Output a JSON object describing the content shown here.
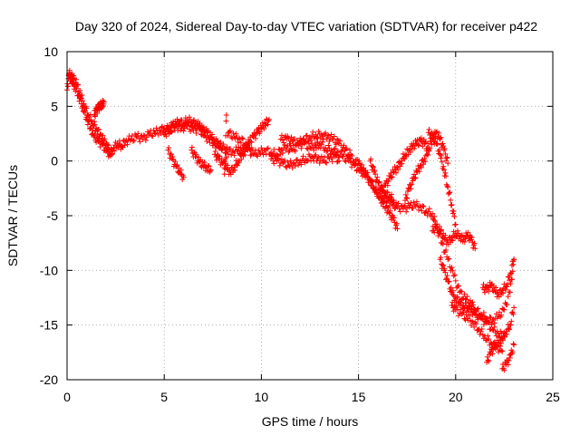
{
  "chart_data": {
    "type": "scatter",
    "title": "Day 320 of 2024, Sidereal Day-to-day VTEC variation (SDTVAR) for receiver p422",
    "xlabel": "GPS time / hours",
    "ylabel": "SDTVAR / TECUs",
    "xlim": [
      0,
      25
    ],
    "ylim": [
      -20,
      10
    ],
    "x_ticks": [
      "0",
      "5",
      "10",
      "15",
      "20",
      "25"
    ],
    "y_ticks": [
      "10",
      "5",
      "0",
      "-5",
      "-10",
      "-15",
      "-20"
    ],
    "grid": true,
    "marker": "plus",
    "series_color": "#ff0000",
    "series": [
      {
        "x": [
          0.0,
          0.1,
          0.2,
          0.3,
          0.4,
          0.6,
          0.8,
          1.0,
          1.2,
          1.4,
          1.6,
          1.8,
          2.0,
          2.2,
          2.4,
          2.6,
          2.8,
          3.0,
          3.3,
          3.6,
          3.9,
          4.2,
          4.5,
          4.8,
          5.0,
          5.3,
          5.6,
          5.9,
          6.2,
          6.5,
          6.8,
          7.0,
          7.3,
          7.6,
          7.9,
          8.2,
          8.5,
          8.8,
          9.0,
          9.3,
          9.6,
          9.9,
          10.2,
          10.5,
          10.8,
          11.0,
          11.3,
          11.6,
          11.9,
          12.2,
          12.5,
          12.8,
          13.0,
          13.3,
          13.6,
          13.9,
          14.2,
          14.5,
          14.8,
          15.0,
          15.3,
          15.6,
          15.9,
          16.2,
          16.5,
          16.8,
          17.0,
          17.3,
          17.6,
          17.9,
          18.2,
          18.5,
          18.8,
          19.0,
          19.3,
          19.6,
          19.9,
          20.2,
          20.5,
          20.8,
          21.0,
          21.3,
          21.6,
          21.9,
          22.2,
          22.5,
          22.8,
          23.0
        ],
        "y": [
          6.5,
          7.8,
          7.5,
          7.2,
          6.8,
          6.0,
          5.0,
          4.0,
          3.0,
          2.2,
          1.8,
          1.5,
          1.0,
          0.6,
          1.2,
          1.6,
          1.4,
          1.8,
          2.0,
          2.2,
          2.0,
          2.4,
          2.6,
          2.8,
          3.0,
          2.8,
          3.2,
          3.0,
          3.2,
          2.8,
          3.0,
          2.4,
          2.0,
          1.6,
          1.4,
          1.0,
          0.8,
          1.0,
          0.8,
          1.0,
          0.6,
          0.8,
          1.0,
          0.8,
          0.6,
          1.0,
          1.2,
          1.0,
          1.4,
          1.6,
          1.2,
          1.4,
          1.6,
          1.2,
          1.0,
          0.8,
          0.4,
          0.0,
          -0.4,
          -0.8,
          -1.2,
          -1.8,
          -2.6,
          -3.2,
          -3.6,
          -4.0,
          -4.2,
          -4.4,
          -4.2,
          -4.0,
          -4.2,
          -4.6,
          -4.8,
          -6.0,
          -7.5,
          -9.0,
          -10.5,
          -12.0,
          -12.6,
          -13.0,
          -13.6,
          -14.0,
          -14.4,
          -14.6,
          -14.2,
          -13.6,
          -12.0,
          -9.0
        ]
      },
      {
        "x": [
          0.1,
          0.3,
          0.5,
          0.7,
          0.9,
          1.1,
          1.3,
          1.5,
          1.7,
          1.9,
          2.1,
          2.3
        ],
        "y": [
          8.0,
          7.6,
          7.0,
          6.0,
          5.0,
          4.2,
          3.6,
          3.0,
          2.4,
          1.8,
          1.2,
          0.6
        ]
      },
      {
        "x": [
          1.4,
          1.5,
          1.6,
          1.7,
          1.8,
          1.9
        ],
        "y": [
          4.2,
          4.6,
          4.8,
          5.0,
          5.2,
          5.4
        ]
      },
      {
        "x": [
          5.0,
          5.2,
          5.4,
          5.6,
          5.8,
          6.0,
          6.2,
          6.4,
          6.6,
          6.8,
          7.0,
          7.2,
          7.4,
          7.6,
          7.8,
          8.0
        ],
        "y": [
          2.4,
          2.8,
          3.2,
          3.4,
          3.6,
          3.4,
          3.8,
          3.6,
          3.4,
          3.2,
          2.8,
          2.6,
          2.2,
          1.8,
          1.6,
          1.2
        ]
      },
      {
        "x": [
          5.2,
          5.4,
          5.6,
          5.8,
          6.0
        ],
        "y": [
          1.0,
          0.2,
          -0.5,
          -1.0,
          -1.5
        ]
      },
      {
        "x": [
          6.4,
          6.6,
          6.8,
          7.0,
          7.2,
          7.4
        ],
        "y": [
          1.0,
          0.4,
          -0.1,
          -0.4,
          -0.6,
          -0.8
        ]
      },
      {
        "x": [
          7.6,
          7.8,
          8.0,
          8.2,
          8.4,
          8.6,
          8.8,
          9.0,
          9.2,
          9.4,
          9.6,
          9.8,
          10.0,
          10.2,
          10.4
        ],
        "y": [
          0.6,
          0.2,
          -0.2,
          -0.6,
          -1.0,
          -0.6,
          0.0,
          0.6,
          1.2,
          1.8,
          2.2,
          2.6,
          3.0,
          3.4,
          3.8
        ]
      },
      {
        "x": [
          8.2,
          8.1,
          8.3,
          8.6,
          8.9,
          9.2,
          9.5
        ],
        "y": [
          4.2,
          -1.2,
          2.6,
          2.2,
          2.0,
          1.6,
          1.2
        ]
      },
      {
        "x": [
          10.5,
          10.8,
          11.1,
          11.4,
          11.7,
          12.0,
          12.3,
          12.6,
          12.9,
          13.2,
          13.5,
          13.8,
          14.0
        ],
        "y": [
          0.2,
          0.0,
          -0.2,
          -0.4,
          -0.2,
          0.0,
          0.2,
          0.4,
          0.2,
          0.0,
          0.2,
          0.4,
          0.0
        ]
      },
      {
        "x": [
          11.0,
          11.3,
          11.6,
          11.9,
          12.2,
          12.5,
          12.8,
          13.1,
          13.4,
          13.7,
          14.0,
          14.3,
          14.6
        ],
        "y": [
          2.0,
          2.0,
          1.8,
          1.6,
          2.0,
          2.2,
          2.4,
          2.4,
          2.2,
          2.0,
          1.6,
          1.0,
          0.6
        ]
      },
      {
        "x": [
          14.6,
          15.0,
          15.2,
          15.4,
          15.6,
          15.8,
          16.0,
          16.2,
          16.4,
          16.6,
          16.8,
          17.0
        ],
        "y": [
          0.2,
          -0.2,
          -0.8,
          -1.2,
          -1.8,
          -2.4,
          -3.0,
          -3.6,
          -4.2,
          -4.8,
          -5.4,
          -6.2
        ]
      },
      {
        "x": [
          15.6,
          15.8,
          16.0,
          16.2,
          16.4,
          16.6,
          16.8
        ],
        "y": [
          0.0,
          -1.0,
          -2.0,
          -2.6,
          -3.0,
          -3.2,
          -3.6
        ]
      },
      {
        "x": [
          16.2,
          16.4,
          16.6,
          16.8,
          17.0,
          17.2,
          17.4,
          17.6,
          17.8,
          18.0,
          18.2,
          18.4,
          18.6
        ],
        "y": [
          -2.8,
          -2.2,
          -1.6,
          -1.0,
          -0.6,
          0.0,
          0.6,
          1.0,
          1.4,
          1.6,
          1.8,
          1.6,
          1.2
        ]
      },
      {
        "x": [
          17.4,
          17.6,
          17.8,
          18.0,
          18.2,
          18.4,
          18.6,
          18.8,
          19.0,
          19.2,
          19.4,
          19.6
        ],
        "y": [
          -3.6,
          -2.6,
          -1.8,
          -1.0,
          -0.4,
          0.2,
          1.0,
          2.0,
          2.6,
          2.0,
          1.0,
          -0.2
        ]
      },
      {
        "x": [
          18.6,
          18.8,
          19.0,
          19.2,
          19.4,
          19.6,
          19.8,
          20.0
        ],
        "y": [
          2.6,
          2.2,
          1.6,
          0.6,
          -0.8,
          -2.4,
          -4.0,
          -5.8
        ]
      },
      {
        "x": [
          18.8,
          19.0,
          19.2,
          19.4,
          19.6,
          19.8,
          20.0,
          20.2,
          20.4,
          20.6,
          20.8,
          21.0
        ],
        "y": [
          -6.4,
          -6.0,
          -6.4,
          -7.0,
          -7.4,
          -7.0,
          -6.6,
          -6.8,
          -7.2,
          -6.8,
          -7.2,
          -8.0
        ]
      },
      {
        "x": [
          19.2,
          19.4,
          19.6,
          19.8,
          20.0,
          20.2,
          20.4,
          20.6,
          20.8,
          21.0,
          21.3,
          21.6,
          21.9,
          22.2,
          22.5
        ],
        "y": [
          -9.0,
          -10.0,
          -11.0,
          -12.0,
          -12.6,
          -12.8,
          -13.2,
          -13.4,
          -13.6,
          -14.0,
          -14.4,
          -14.8,
          -15.4,
          -15.8,
          -16.0
        ]
      },
      {
        "x": [
          19.8,
          20.0,
          20.3,
          20.6,
          20.9,
          21.2,
          21.5,
          21.8,
          22.1,
          22.4
        ],
        "y": [
          -13.2,
          -13.6,
          -14.0,
          -14.4,
          -14.8,
          -15.4,
          -16.0,
          -16.6,
          -17.0,
          -17.4
        ]
      },
      {
        "x": [
          21.6,
          21.8,
          22.0,
          22.2,
          22.4,
          22.6,
          22.8,
          23.0
        ],
        "y": [
          -18.4,
          -17.6,
          -17.0,
          -16.6,
          -16.2,
          -15.6,
          -15.0,
          -13.4
        ]
      },
      {
        "x": [
          21.4,
          21.6,
          21.8,
          22.0,
          22.2,
          22.4,
          22.6,
          22.8,
          23.0
        ],
        "y": [
          -11.6,
          -11.8,
          -11.4,
          -11.8,
          -12.2,
          -11.8,
          -11.4,
          -10.4,
          -9.0
        ]
      },
      {
        "x": [
          22.4,
          22.6,
          22.8,
          23.0
        ],
        "y": [
          -19.0,
          -18.6,
          -18.0,
          -16.8
        ]
      }
    ]
  }
}
